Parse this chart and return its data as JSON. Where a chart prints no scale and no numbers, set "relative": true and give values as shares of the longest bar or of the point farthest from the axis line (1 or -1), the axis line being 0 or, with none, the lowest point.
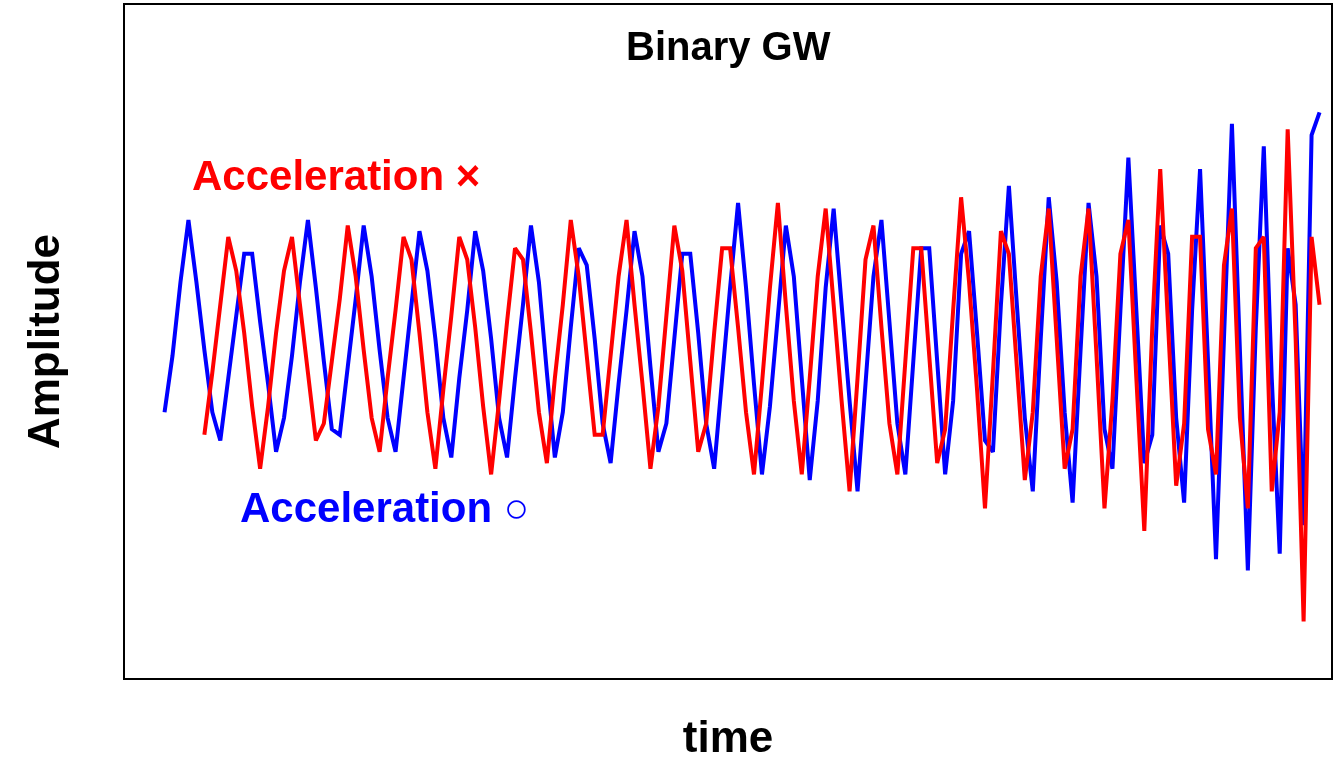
{
  "chart_data": {
    "type": "line",
    "title": "Binary GW",
    "xlabel": "time",
    "ylabel": "Amplitude",
    "relative": true,
    "legend": false,
    "categories": [
      null,
      null,
      null,
      null,
      null,
      null,
      null,
      null,
      null,
      null,
      null,
      null,
      null,
      null,
      null,
      null,
      null,
      null,
      null,
      null,
      null,
      null,
      null,
      null,
      null,
      null,
      null,
      null,
      null,
      null,
      null,
      null,
      null,
      null,
      null,
      null,
      null,
      null,
      null,
      null,
      null,
      null,
      null,
      null,
      null,
      null,
      null,
      null,
      null,
      null,
      null,
      null,
      null,
      null,
      null,
      null,
      null,
      null,
      null,
      null,
      null,
      null,
      null,
      null,
      null,
      null,
      null,
      null,
      null,
      null,
      null,
      null,
      null,
      null,
      null,
      null,
      null,
      null,
      null,
      null,
      null,
      null,
      null,
      null,
      null,
      null,
      null,
      null,
      null,
      null,
      null,
      null,
      null,
      null,
      null,
      null,
      null,
      null,
      null,
      null,
      null,
      null,
      null,
      null,
      null,
      null,
      null,
      null,
      null,
      null,
      null,
      null,
      null,
      null,
      null,
      null,
      null,
      null,
      null,
      null,
      null,
      null,
      null,
      null,
      null,
      null,
      null,
      null,
      null,
      null,
      null,
      null,
      null,
      null,
      null,
      null,
      null,
      null,
      null,
      null,
      null,
      null,
      null,
      null,
      null,
      null
    ],
    "series": [
      {
        "name": "Acceleration ×",
        "color": "#ff0000",
        "values": [
          null,
          null,
          null,
          null,
          null,
          0.43,
          0.54,
          0.66,
          0.78,
          0.72,
          0.61,
          0.48,
          0.37,
          0.48,
          0.61,
          0.72,
          0.78,
          0.66,
          0.54,
          0.42,
          0.45,
          0.56,
          0.67,
          0.8,
          0.71,
          0.58,
          0.46,
          0.4,
          0.53,
          0.65,
          0.78,
          0.74,
          0.61,
          0.47,
          0.37,
          0.51,
          0.64,
          0.78,
          0.74,
          0.62,
          0.48,
          0.36,
          0.49,
          0.63,
          0.76,
          0.74,
          0.61,
          0.47,
          0.38,
          0.53,
          0.66,
          0.81,
          0.71,
          0.57,
          0.43,
          0.43,
          0.57,
          0.71,
          0.81,
          0.66,
          0.52,
          0.37,
          0.48,
          0.64,
          0.8,
          0.72,
          0.56,
          0.4,
          0.45,
          0.61,
          0.76,
          0.76,
          0.62,
          0.47,
          0.36,
          0.52,
          0.69,
          0.84,
          0.66,
          0.49,
          0.36,
          0.53,
          0.71,
          0.83,
          0.66,
          0.49,
          0.33,
          0.53,
          0.74,
          0.8,
          0.62,
          0.45,
          0.36,
          0.56,
          0.76,
          0.76,
          0.57,
          0.38,
          0.44,
          0.65,
          0.85,
          0.7,
          0.51,
          0.3,
          0.54,
          0.79,
          0.75,
          0.55,
          0.35,
          0.47,
          0.71,
          0.83,
          0.6,
          0.37,
          0.44,
          0.71,
          0.83,
          0.57,
          0.3,
          0.49,
          0.75,
          0.81,
          0.53,
          0.26,
          0.62,
          0.9,
          0.62,
          0.34,
          0.45,
          0.78,
          0.78,
          0.44,
          0.36,
          0.73,
          0.83,
          0.46,
          0.3,
          0.76,
          0.78,
          0.33,
          0.47,
          0.97,
          0.6,
          0.1,
          0.78,
          0.66
        ]
      },
      {
        "name": "Acceleration ○",
        "color": "#0000ff",
        "values": [
          0.47,
          0.57,
          0.7,
          0.81,
          0.7,
          0.58,
          0.47,
          0.42,
          0.53,
          0.64,
          0.75,
          0.75,
          0.63,
          0.52,
          0.4,
          0.46,
          0.57,
          0.7,
          0.81,
          0.69,
          0.56,
          0.44,
          0.43,
          0.55,
          0.67,
          0.8,
          0.71,
          0.58,
          0.46,
          0.4,
          0.53,
          0.66,
          0.79,
          0.72,
          0.6,
          0.46,
          0.39,
          0.53,
          0.65,
          0.79,
          0.72,
          0.6,
          0.46,
          0.39,
          0.53,
          0.66,
          0.8,
          0.7,
          0.54,
          0.39,
          0.47,
          0.62,
          0.76,
          0.73,
          0.6,
          0.45,
          0.38,
          0.52,
          0.65,
          0.79,
          0.71,
          0.55,
          0.4,
          0.45,
          0.6,
          0.75,
          0.75,
          0.61,
          0.45,
          0.37,
          0.53,
          0.69,
          0.84,
          0.69,
          0.52,
          0.36,
          0.48,
          0.64,
          0.8,
          0.71,
          0.53,
          0.35,
          0.49,
          0.69,
          0.83,
          0.66,
          0.49,
          0.33,
          0.52,
          0.71,
          0.81,
          0.63,
          0.45,
          0.36,
          0.56,
          0.76,
          0.76,
          0.56,
          0.36,
          0.49,
          0.75,
          0.79,
          0.61,
          0.42,
          0.4,
          0.66,
          0.87,
          0.66,
          0.46,
          0.33,
          0.6,
          0.85,
          0.7,
          0.47,
          0.31,
          0.58,
          0.84,
          0.71,
          0.44,
          0.37,
          0.65,
          0.92,
          0.65,
          0.38,
          0.43,
          0.8,
          0.75,
          0.46,
          0.31,
          0.65,
          0.9,
          0.56,
          0.21,
          0.6,
          0.98,
          0.58,
          0.19,
          0.62,
          0.94,
          0.53,
          0.22,
          0.76,
          0.66,
          0.27,
          0.96,
          1.0
        ]
      }
    ]
  }
}
